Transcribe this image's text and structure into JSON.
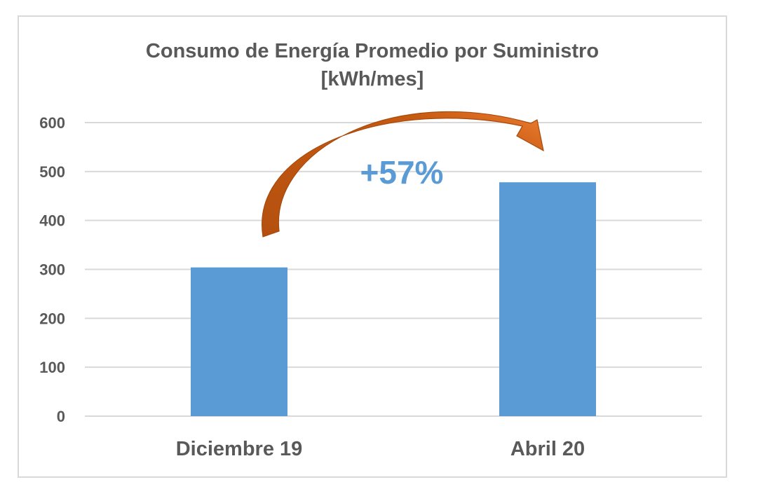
{
  "chart_data": {
    "type": "bar",
    "title": [
      "Consumo de Energía Promedio por Suministro",
      "[kWh/mes]"
    ],
    "categories": [
      "Diciembre 19",
      "Abril 20"
    ],
    "values": [
      304,
      478
    ],
    "ylim": [
      0,
      600
    ],
    "yticks": [
      0,
      100,
      200,
      300,
      400,
      500,
      600
    ],
    "grid": true,
    "legend": "none",
    "annotation": "+57%",
    "colors": {
      "bar": "#5b9bd5",
      "grid": "#d9d9d9",
      "text": "#595959",
      "arrow": "#c55a11",
      "arrow_tip": "#ed7d31",
      "annotation": "#5b9bd5"
    }
  }
}
